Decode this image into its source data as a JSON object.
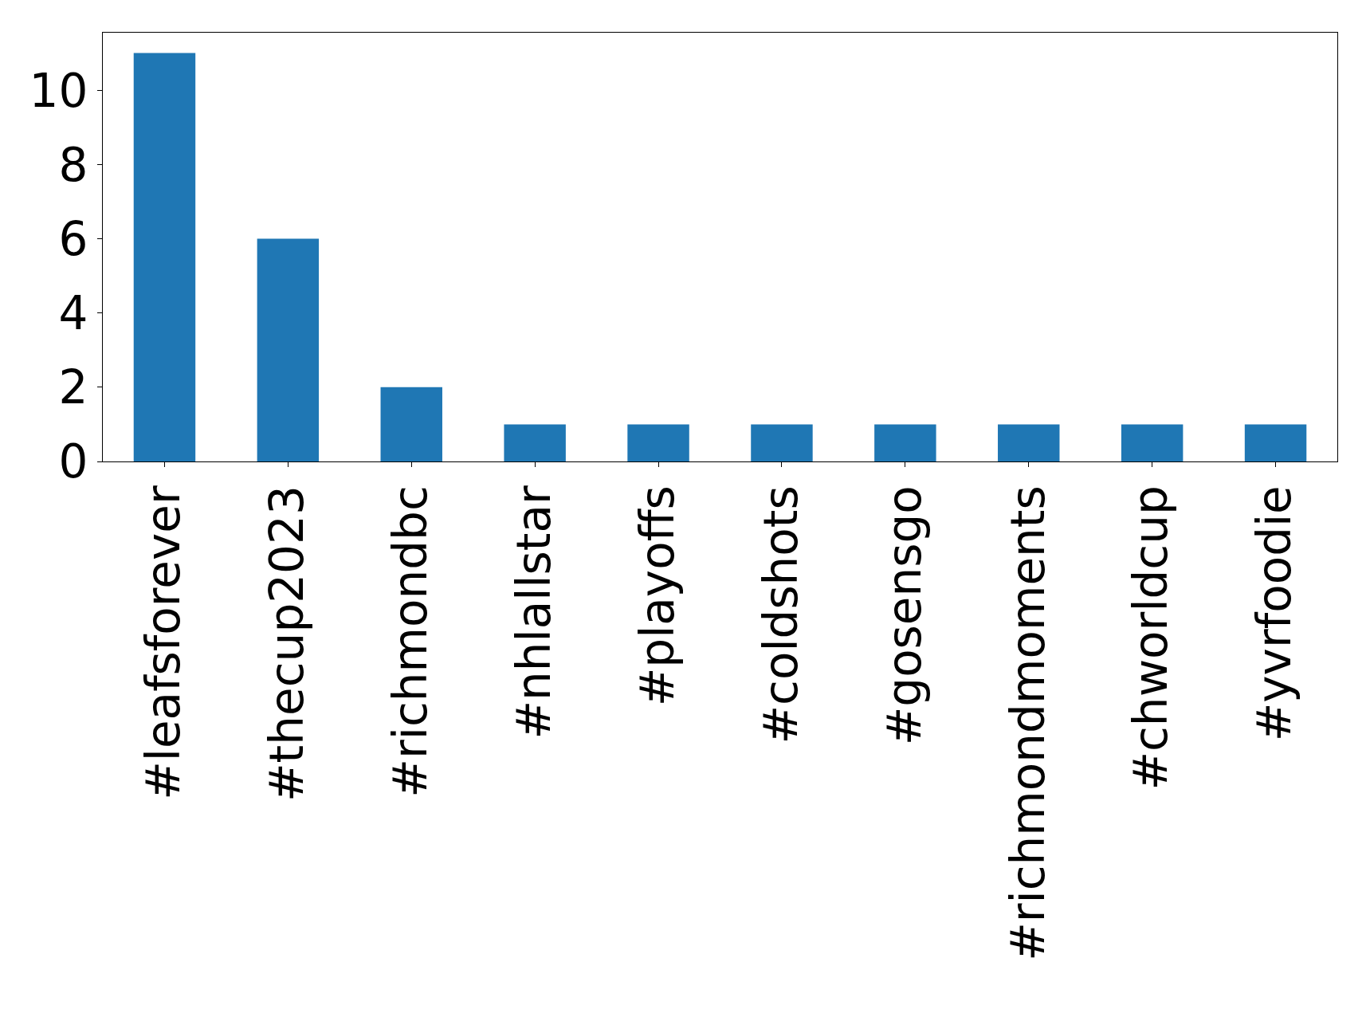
{
  "chart_data": {
    "type": "bar",
    "categories": [
      "#leafsforever",
      "#thecup2023",
      "#richmondbc",
      "#nhlallstar",
      "#playoffs",
      "#coldshots",
      "#gosensgo",
      "#richmondmoments",
      "#chworldcup",
      "#yvrfoodie"
    ],
    "values": [
      11,
      6,
      2,
      1,
      1,
      1,
      1,
      1,
      1,
      1
    ],
    "color": "#1f77b4",
    "ylim": [
      0,
      11.55
    ],
    "yticks": [
      0,
      2,
      4,
      6,
      8,
      10
    ]
  }
}
